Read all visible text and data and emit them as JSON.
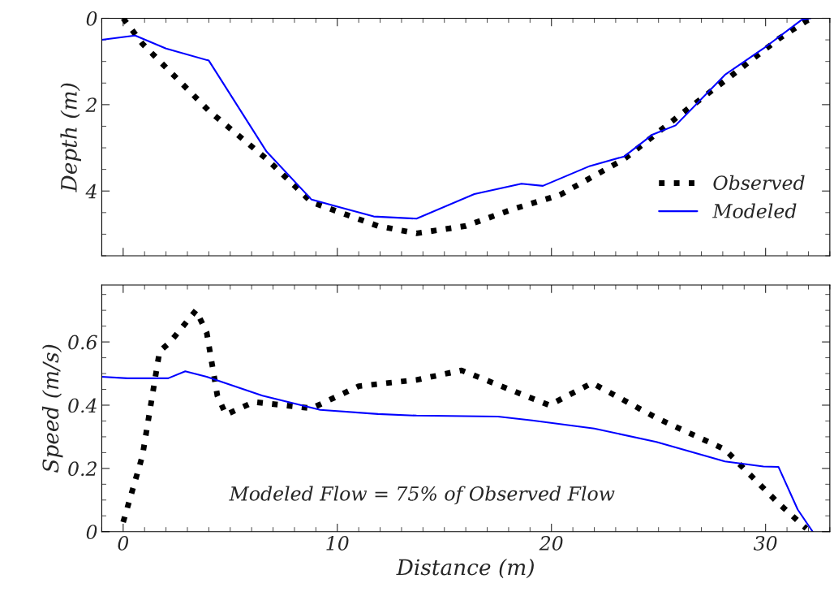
{
  "chart_data": [
    {
      "type": "line",
      "ylabel": "Depth (m)",
      "xlim": [
        -1,
        33
      ],
      "xticks": [
        0,
        10,
        20,
        30
      ],
      "ylim": [
        5.5,
        0
      ],
      "yticks": [
        0,
        2,
        4
      ],
      "tick_labels": "y",
      "legend": "lower right",
      "grid": false,
      "series": [
        {
          "name": "Observed",
          "color": "#000000",
          "line_style": "dotted",
          "x": [
            0,
            0.9,
            4.0,
            6.7,
            8.8,
            11.9,
            13.7,
            16.0,
            18.2,
            20.4,
            23.4,
            26.1,
            28.3,
            30.6,
            32.1
          ],
          "values": [
            0,
            0.59,
            2.14,
            3.26,
            4.26,
            4.81,
            4.98,
            4.81,
            4.42,
            4.09,
            3.26,
            2.2,
            1.37,
            0.48,
            0
          ]
        },
        {
          "name": "Modeled",
          "color": "#0000ff",
          "line_style": "solid",
          "x": [
            -1.0,
            0.56,
            2.0,
            4.0,
            6.7,
            8.8,
            11.7,
            13.7,
            16.4,
            18.6,
            19.6,
            21.8,
            23.4,
            24.7,
            25.8,
            28.1,
            29.9,
            31.7,
            32.1
          ],
          "values": [
            0.5,
            0.4,
            0.7,
            0.98,
            3.09,
            4.2,
            4.59,
            4.64,
            4.07,
            3.83,
            3.88,
            3.42,
            3.2,
            2.7,
            2.48,
            1.31,
            0.7,
            0.03,
            0
          ]
        }
      ]
    },
    {
      "type": "line",
      "xlabel": "Distance (m)",
      "ylabel": "Speed (m/s)",
      "xlim": [
        -1,
        33
      ],
      "xticks": [
        0,
        10,
        20,
        30
      ],
      "ylim": [
        0,
        0.78
      ],
      "yticks": [
        0,
        0.2,
        0.4,
        0.6
      ],
      "grid": false,
      "annotations": [
        "Modeled Flow = 75% of Observed Flow"
      ],
      "series": [
        {
          "color": "#000000",
          "line_style": "dotted",
          "x": [
            0,
            0.9,
            1.7,
            2.2,
            3.4,
            3.9,
            4.4,
            4.8,
            6.1,
            8.8,
            11.0,
            13.7,
            15.8,
            19.9,
            21.9,
            24.9,
            28.1,
            30.6,
            31.9
          ],
          "values": [
            0.03,
            0.24,
            0.57,
            0.6,
            0.7,
            0.63,
            0.43,
            0.37,
            0.41,
            0.39,
            0.46,
            0.48,
            0.51,
            0.4,
            0.47,
            0.36,
            0.26,
            0.09,
            0.01
          ]
        },
        {
          "color": "#0000ff",
          "line_style": "solid",
          "x": [
            -1,
            0.2,
            2.1,
            2.9,
            3.9,
            6.5,
            9.2,
            11.9,
            13.7,
            17.5,
            19.1,
            22.0,
            24.9,
            28.1,
            29.9,
            30.6,
            31.5,
            32.2
          ],
          "values": [
            0.49,
            0.485,
            0.485,
            0.507,
            0.49,
            0.43,
            0.385,
            0.372,
            0.367,
            0.364,
            0.352,
            0.326,
            0.284,
            0.222,
            0.206,
            0.205,
            0.07,
            0
          ]
        }
      ]
    }
  ]
}
